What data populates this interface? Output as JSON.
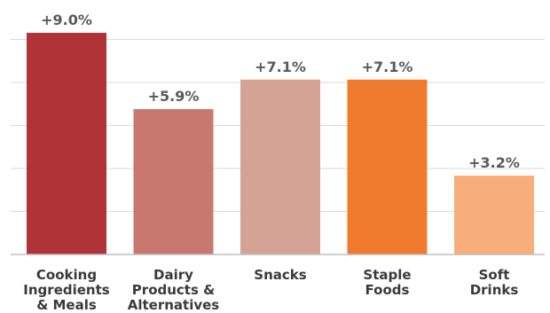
{
  "chart_data": {
    "type": "bar",
    "categories": [
      [
        "Cooking",
        "Ingredients",
        "& Meals"
      ],
      [
        "Dairy",
        "Products &",
        "Alternatives"
      ],
      [
        "Snacks"
      ],
      [
        "Staple",
        "Foods"
      ],
      [
        "Soft",
        "Drinks"
      ]
    ],
    "values": [
      9.0,
      5.9,
      7.1,
      7.1,
      3.2
    ],
    "value_labels": [
      "+9.0%",
      "+5.9%",
      "+7.1%",
      "+7.1%",
      "+3.2%"
    ],
    "colors": [
      "#b03337",
      "#c97870",
      "#d5a396",
      "#f07b2f",
      "#f7ae7a"
    ],
    "ylim": [
      0,
      10
    ],
    "grid": true,
    "grid_color": "#d9d9d9",
    "axis_color": "#bfbfbf",
    "title": "",
    "xlabel": "",
    "ylabel": ""
  }
}
